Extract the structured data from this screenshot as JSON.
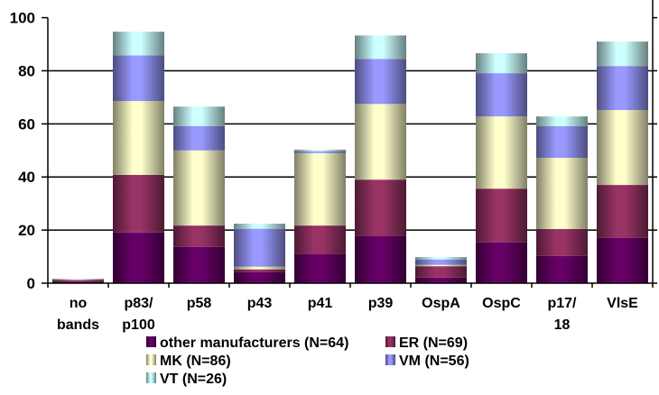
{
  "chart_data": {
    "type": "bar",
    "stacked": true,
    "title": "",
    "xlabel": "",
    "ylabel": "",
    "ylim": [
      0,
      100
    ],
    "yticks": [
      0,
      20,
      40,
      60,
      80,
      100
    ],
    "grid": true,
    "legend_position": "bottom",
    "categories": [
      [
        "no",
        "bands"
      ],
      [
        "p83/",
        "p100"
      ],
      [
        "p58"
      ],
      [
        "p43"
      ],
      [
        "p41"
      ],
      [
        "p39"
      ],
      [
        "OspA"
      ],
      [
        "OspC"
      ],
      [
        "p17/",
        "18"
      ],
      [
        "VlsE"
      ]
    ],
    "series": [
      {
        "name": "other manufacturers (N=64)",
        "color": "#660066",
        "values": [
          0.6,
          19.1,
          13.7,
          4.2,
          11.0,
          17.8,
          2.1,
          15.4,
          10.3,
          17.1
        ]
      },
      {
        "name": "ER (N=69)",
        "color": "#993366",
        "values": [
          0.6,
          21.7,
          8.0,
          1.0,
          10.7,
          21.2,
          4.3,
          20.2,
          10.1,
          19.9
        ]
      },
      {
        "name": "MK (N=86)",
        "color": "#FFFFCC",
        "values": [
          0.3,
          27.8,
          28.3,
          1.0,
          27.3,
          28.5,
          0.5,
          27.2,
          26.8,
          28.2
        ]
      },
      {
        "name": "VM (N=56)",
        "color": "#9999FF",
        "values": [
          0.1,
          17.2,
          9.2,
          14.3,
          0.7,
          17.0,
          2.0,
          16.3,
          11.9,
          16.6
        ]
      },
      {
        "name": "VT (N=26)",
        "color": "#CCFFFF",
        "values": [
          0.1,
          8.9,
          7.3,
          1.9,
          0.6,
          8.8,
          0.9,
          7.5,
          3.7,
          9.2
        ]
      }
    ]
  }
}
